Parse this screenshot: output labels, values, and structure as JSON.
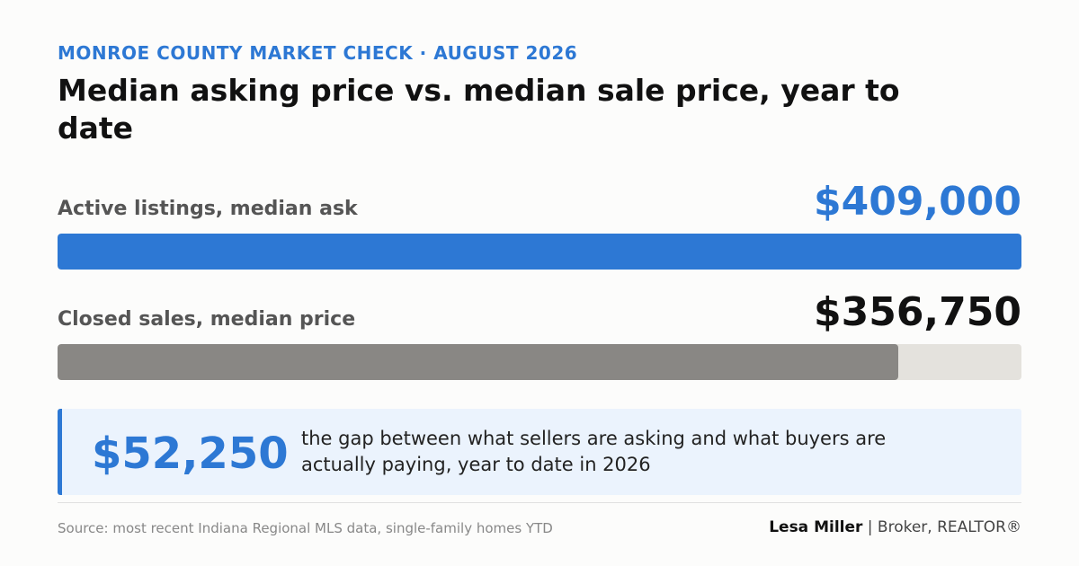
{
  "chart_data": {
    "type": "bar",
    "orientation": "horizontal",
    "kicker": "MONROE COUNTY MARKET CHECK · AUGUST 2026",
    "title": "Median asking price vs. median sale price, year to date",
    "categories": [
      "Active listings, median ask",
      "Closed sales, median price"
    ],
    "values": [
      409000,
      356750
    ],
    "value_labels": [
      "$409,000",
      "$356,750"
    ],
    "colors": [
      "#2d78d4",
      "#898784"
    ],
    "label_colors": [
      "#2d78d4",
      "#111111"
    ],
    "track_color": "#e4e2dd"
  },
  "callout": {
    "value": "$52,250",
    "text": "the gap between what sellers are asking and what buyers are actually paying, year to date in 2026"
  },
  "footer": {
    "source": "Source: most recent Indiana Regional MLS data, single-family homes YTD",
    "author": "Lesa Miller",
    "role": "| Broker, REALTOR®"
  }
}
